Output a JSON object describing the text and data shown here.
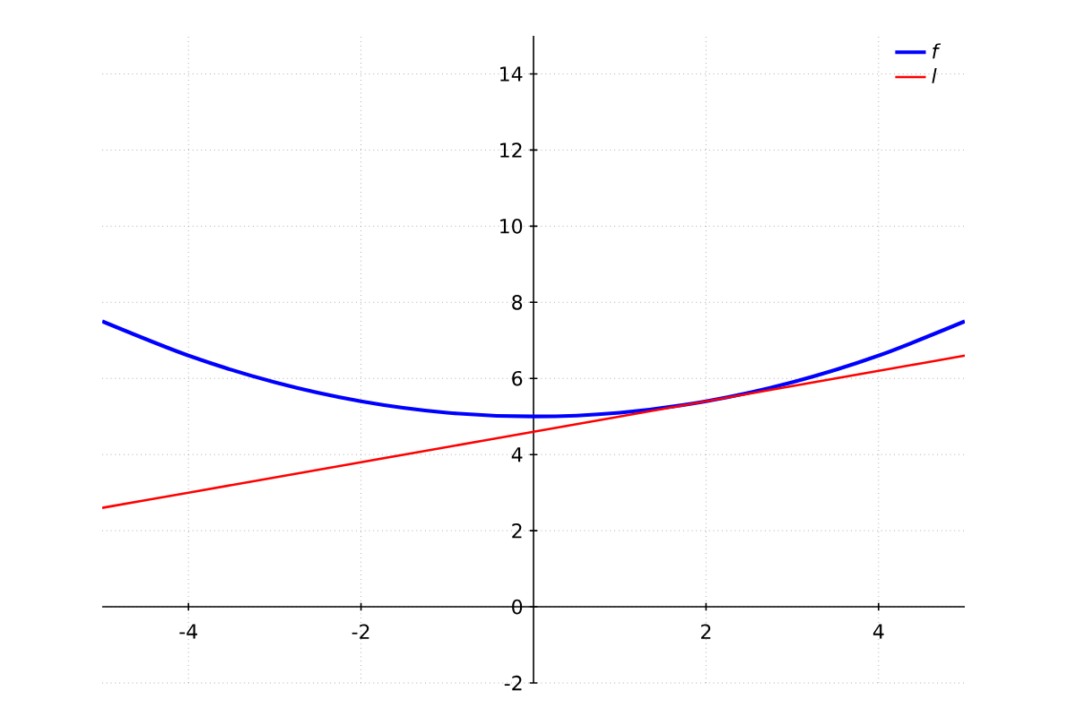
{
  "chart_data": {
    "type": "line",
    "x": [
      -5,
      -4,
      -3,
      -2,
      -1,
      0,
      1,
      2,
      3,
      4,
      5
    ],
    "series": [
      {
        "name": "f",
        "color": "#0000ff",
        "values": [
          7.5,
          6.6,
          5.9,
          5.4,
          5.1,
          5.0,
          5.1,
          5.4,
          5.9,
          6.6,
          7.5
        ]
      },
      {
        "name": "l",
        "color": "#ff0000",
        "values": [
          2.6,
          3.0,
          3.4,
          3.8,
          4.2,
          4.6,
          5.0,
          5.4,
          5.8,
          6.2,
          6.6
        ]
      }
    ],
    "xlim": [
      -5,
      5
    ],
    "ylim": [
      -2,
      15
    ],
    "xticks": [
      -4,
      -2,
      2,
      4
    ],
    "yticks": [
      -2,
      0,
      2,
      4,
      6,
      8,
      10,
      12,
      14
    ],
    "grid": true,
    "legend": "top right",
    "marker": "none",
    "line_style": "solid"
  }
}
